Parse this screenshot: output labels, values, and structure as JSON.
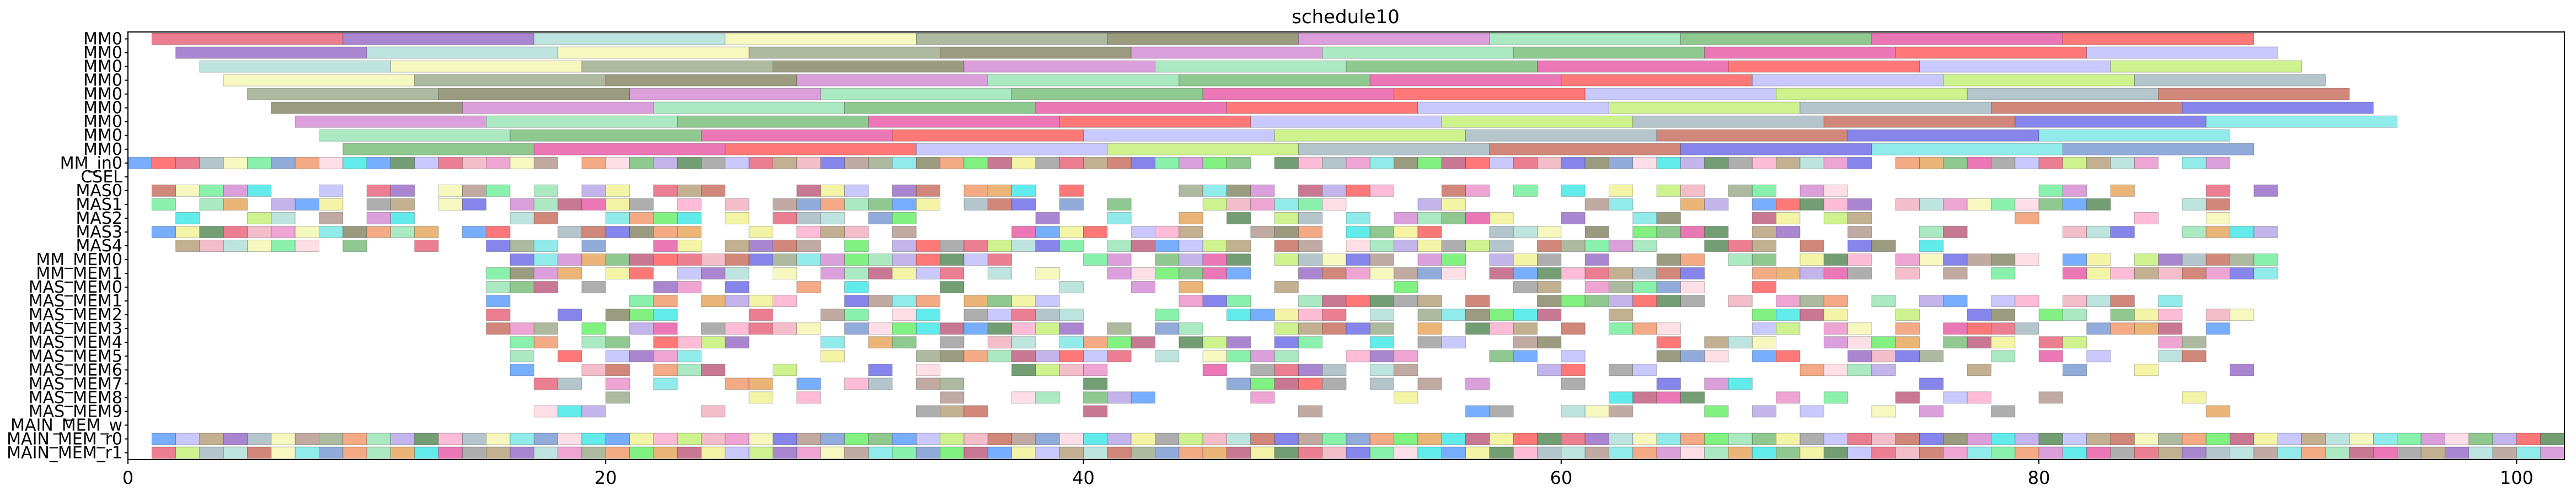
{
  "chart_data": {
    "type": "bar",
    "title": "schedule10",
    "rows": [
      "MM0",
      "MM0",
      "MM0",
      "MM0",
      "MM0",
      "MM0",
      "MM0",
      "MM0",
      "MM0",
      "MM_in0",
      "CSEL",
      "MAS0",
      "MAS1",
      "MAS2",
      "MAS3",
      "MAS4",
      "MM_MEM0",
      "MM_MEM1",
      "MAS_MEM0",
      "MAS_MEM1",
      "MAS_MEM2",
      "MAS_MEM3",
      "MAS_MEM4",
      "MAS_MEM5",
      "MAS_MEM6",
      "MAS_MEM7",
      "MAS_MEM8",
      "MAS_MEM9",
      "MAIN_MEM_w",
      "MAIN_MEM_r0",
      "MAIN_MEM_r1"
    ],
    "xlim": [
      0,
      102
    ],
    "xticks": [
      "0",
      "20",
      "40",
      "60",
      "80",
      "100"
    ],
    "palette": [
      "#e8677d",
      "#c4f07a",
      "#b9a27c",
      "#9b71c9",
      "#a7bcc3",
      "#f2b2c1",
      "#b2dfd8",
      "#c97262",
      "#eb95cd",
      "#f6f6b5",
      "#7070e8",
      "#b59b91",
      "#9fae8e",
      "#7fe7e7",
      "#74ef9c",
      "#8a8a6a",
      "#7e9ed4",
      "#f29b6e",
      "#d58ed5",
      "#ffd9e3",
      "#6bef6b",
      "#9be5b7",
      "#e7a85f",
      "#47e7e7",
      "#7dc07d",
      "#c06080",
      "#b8a8e8",
      "#e75fa9",
      "#60a0ff",
      "#f2f296",
      "#ff6060",
      "#5b8d5b",
      "#a0a0a0",
      "#c0c0ff",
      "#ffb0d0"
    ],
    "gantt": [
      {
        "row": 0,
        "tasks": [
          [
            1,
            9
          ],
          [
            9,
            17
          ],
          [
            17,
            25
          ],
          [
            25,
            33
          ],
          [
            33,
            41
          ],
          [
            41,
            49
          ],
          [
            49,
            57
          ],
          [
            57,
            65
          ],
          [
            65,
            73
          ],
          [
            73,
            81
          ],
          [
            81,
            89
          ]
        ]
      },
      {
        "row": 1,
        "tasks": [
          [
            2,
            10
          ],
          [
            10,
            18
          ],
          [
            18,
            26
          ],
          [
            26,
            34
          ],
          [
            34,
            42
          ],
          [
            42,
            50
          ],
          [
            50,
            58
          ],
          [
            58,
            66
          ],
          [
            66,
            74
          ],
          [
            74,
            82
          ],
          [
            82,
            90
          ]
        ]
      },
      {
        "row": 2,
        "tasks": [
          [
            3,
            11
          ],
          [
            11,
            19
          ],
          [
            19,
            27
          ],
          [
            27,
            35
          ],
          [
            35,
            43
          ],
          [
            43,
            51
          ],
          [
            51,
            59
          ],
          [
            59,
            67
          ],
          [
            67,
            75
          ],
          [
            75,
            83
          ],
          [
            83,
            91
          ]
        ]
      },
      {
        "row": 3,
        "tasks": [
          [
            4,
            12
          ],
          [
            12,
            20
          ],
          [
            20,
            28
          ],
          [
            28,
            36
          ],
          [
            36,
            44
          ],
          [
            44,
            52
          ],
          [
            52,
            60
          ],
          [
            60,
            68
          ],
          [
            68,
            76
          ],
          [
            76,
            84
          ],
          [
            84,
            92
          ]
        ]
      },
      {
        "row": 4,
        "tasks": [
          [
            5,
            13
          ],
          [
            13,
            21
          ],
          [
            21,
            29
          ],
          [
            29,
            37
          ],
          [
            37,
            45
          ],
          [
            45,
            53
          ],
          [
            53,
            61
          ],
          [
            61,
            69
          ],
          [
            69,
            77
          ],
          [
            77,
            85
          ],
          [
            85,
            93
          ]
        ]
      },
      {
        "row": 5,
        "tasks": [
          [
            6,
            14
          ],
          [
            14,
            22
          ],
          [
            22,
            30
          ],
          [
            30,
            38
          ],
          [
            38,
            46
          ],
          [
            46,
            54
          ],
          [
            54,
            62
          ],
          [
            62,
            70
          ],
          [
            70,
            78
          ],
          [
            78,
            86
          ],
          [
            86,
            94
          ]
        ]
      },
      {
        "row": 6,
        "tasks": [
          [
            7,
            15
          ],
          [
            15,
            23
          ],
          [
            23,
            31
          ],
          [
            31,
            39
          ],
          [
            39,
            47
          ],
          [
            47,
            55
          ],
          [
            55,
            63
          ],
          [
            63,
            71
          ],
          [
            71,
            79
          ],
          [
            79,
            87
          ],
          [
            87,
            95
          ]
        ]
      },
      {
        "row": 7,
        "tasks": [
          [
            8,
            16
          ],
          [
            16,
            24
          ],
          [
            24,
            32
          ],
          [
            32,
            40
          ],
          [
            40,
            48
          ],
          [
            48,
            56
          ],
          [
            56,
            64
          ],
          [
            64,
            72
          ],
          [
            72,
            80
          ],
          [
            80,
            88
          ]
        ]
      },
      {
        "row": 8,
        "tasks": [
          [
            9,
            17
          ],
          [
            17,
            25
          ],
          [
            25,
            33
          ],
          [
            33,
            41
          ],
          [
            41,
            49
          ],
          [
            49,
            57
          ],
          [
            57,
            65
          ],
          [
            65,
            73
          ],
          [
            73,
            81
          ],
          [
            81,
            89
          ]
        ]
      }
    ],
    "fills": [
      {
        "row": 9,
        "from": 0,
        "to": 88,
        "density": 0.92
      },
      {
        "row": 11,
        "from": 1,
        "to": 90,
        "density": 0.62
      },
      {
        "row": 12,
        "from": 1,
        "to": 88,
        "density": 0.6
      },
      {
        "row": 13,
        "from": 1,
        "to": 88,
        "density": 0.62
      },
      {
        "row": 14,
        "from": 1,
        "to": 90,
        "density": 0.56
      },
      {
        "row": 15,
        "from": 1,
        "to": 76,
        "density": 0.7
      },
      {
        "row": 16,
        "from": 15,
        "to": 90,
        "density": 0.84
      },
      {
        "row": 17,
        "from": 15,
        "to": 90,
        "density": 0.8
      },
      {
        "row": 18,
        "from": 15,
        "to": 70,
        "density": 0.5
      },
      {
        "row": 19,
        "from": 15,
        "to": 89,
        "density": 0.6
      },
      {
        "row": 20,
        "from": 15,
        "to": 90,
        "density": 0.64
      },
      {
        "row": 21,
        "from": 15,
        "to": 89,
        "density": 0.6
      },
      {
        "row": 22,
        "from": 16,
        "to": 87,
        "density": 0.56
      },
      {
        "row": 23,
        "from": 16,
        "to": 88,
        "density": 0.52
      },
      {
        "row": 24,
        "from": 16,
        "to": 89,
        "density": 0.5
      },
      {
        "row": 25,
        "from": 17,
        "to": 84,
        "density": 0.46
      },
      {
        "row": 26,
        "from": 18,
        "to": 87,
        "density": 0.4
      },
      {
        "row": 27,
        "from": 16,
        "to": 89,
        "density": 0.36
      },
      {
        "row": 29,
        "from": 1,
        "to": 102,
        "density": 1.0
      },
      {
        "row": 30,
        "from": 1,
        "to": 102,
        "density": 1.0
      }
    ]
  }
}
